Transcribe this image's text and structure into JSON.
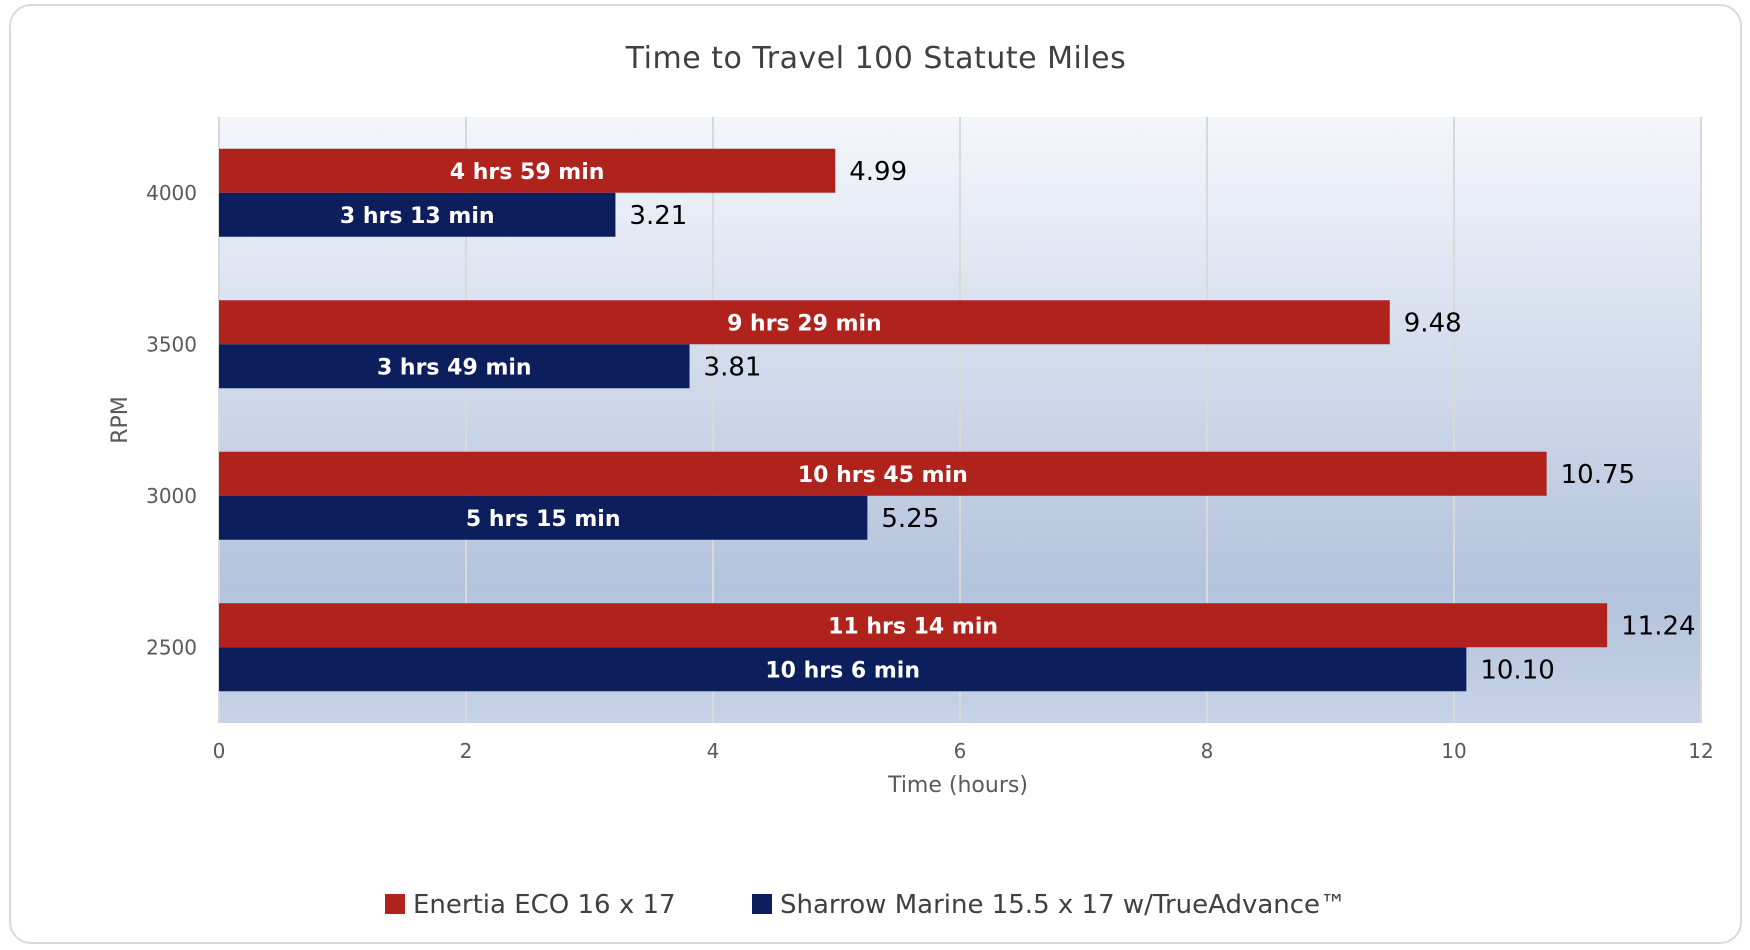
{
  "chart_data": {
    "type": "bar",
    "orientation": "horizontal",
    "title": "Time to Travel 100 Statute Miles",
    "xlabel": "Time (hours)",
    "ylabel": "RPM",
    "categories": [
      "4000",
      "3500",
      "3000",
      "2500"
    ],
    "xlim": [
      0,
      12
    ],
    "x_ticks": [
      "0",
      "2",
      "4",
      "6",
      "8",
      "10",
      "12"
    ],
    "grid": true,
    "legend_position": "bottom",
    "series": [
      {
        "name": "Enertia ECO 16 x 17",
        "color": "#b0231c",
        "values": [
          4.99,
          9.48,
          10.75,
          11.24
        ],
        "value_labels": [
          "4.99",
          "9.48",
          "10.75",
          "11.24"
        ],
        "bar_labels": [
          "4 hrs 59 min",
          "9 hrs 29 min",
          "10 hrs 45 min",
          "11 hrs 14 min"
        ]
      },
      {
        "name": "Sharrow Marine 15.5 x 17 w/TrueAdvance™",
        "color": "#0c1f5c",
        "values": [
          3.21,
          3.81,
          5.25,
          10.1
        ],
        "value_labels": [
          "3.21",
          "3.81",
          "5.25",
          "10.10"
        ],
        "bar_labels": [
          "3 hrs 13 min",
          "3 hrs 49 min",
          "5 hrs 15 min",
          "10 hrs 6 min"
        ]
      }
    ]
  }
}
